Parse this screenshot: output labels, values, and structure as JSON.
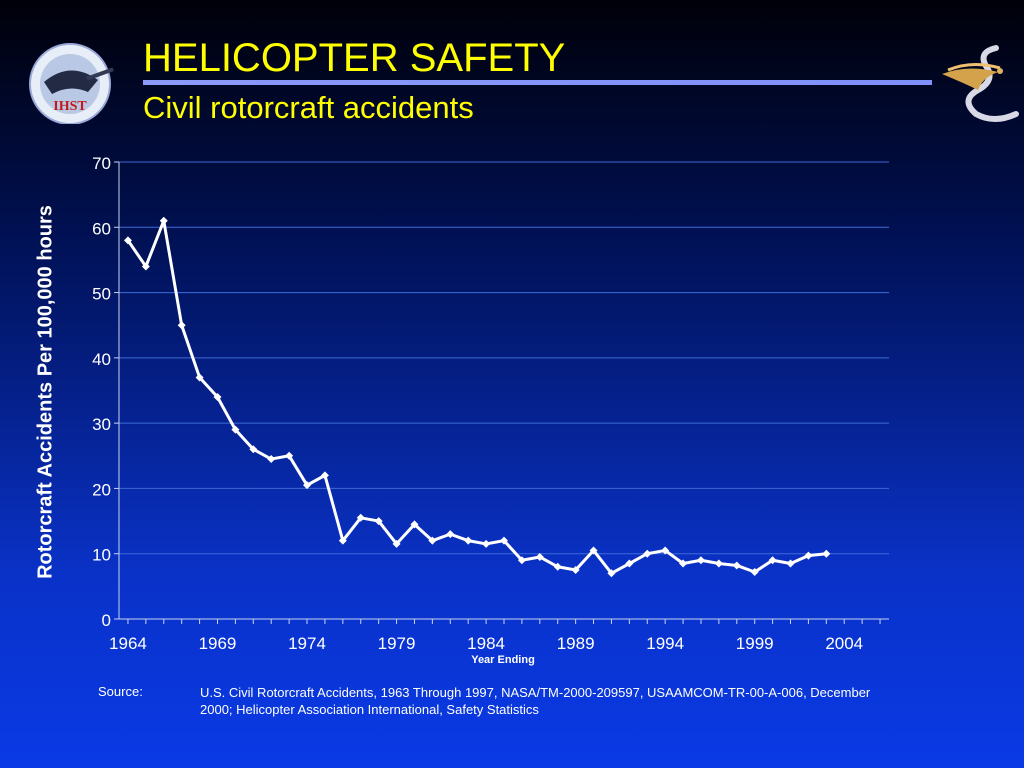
{
  "slide": {
    "title": "HELICOPTER SAFETY",
    "subtitle": "Civil rotorcraft accidents",
    "logo_left_text": "IHST",
    "source_label": "Source:",
    "source_text": "U.S. Civil Rotorcraft Accidents, 1963 Through 1997, NASA/TM-2000-209597, USAAMCOM-TR-00-A-006, December 2000; Helicopter Association International, Safety Statistics"
  },
  "colors": {
    "title": "#ffff00",
    "line": "#ffffff",
    "gridline": "#3d6bd6",
    "rule": "#8090ff"
  },
  "chart_data": {
    "type": "line",
    "title": "",
    "xlabel": "Year Ending",
    "ylabel": "Rotorcraft Accidents Per 100,000 hours",
    "xlim": [
      1963.5,
      2006.5
    ],
    "ylim": [
      0,
      70
    ],
    "grid": true,
    "x_ticks": [
      1964,
      1969,
      1974,
      1979,
      1984,
      1989,
      1994,
      1999,
      2004
    ],
    "y_ticks": [
      0,
      10,
      20,
      30,
      40,
      50,
      60,
      70
    ],
    "series": [
      {
        "x": [
          1964,
          1965,
          1966,
          1967,
          1968,
          1969,
          1970,
          1971,
          1972,
          1973,
          1974,
          1975,
          1976,
          1977,
          1978,
          1979,
          1980,
          1981,
          1982,
          1983,
          1984,
          1985,
          1986,
          1987,
          1988,
          1989,
          1990,
          1991,
          1992,
          1993,
          1994,
          1995,
          1996,
          1997,
          1998,
          1999,
          2000,
          2001,
          2002,
          2003
        ],
        "y": [
          58,
          54,
          61,
          45,
          37,
          34,
          29,
          26,
          24.5,
          25,
          20.5,
          22,
          12,
          15.5,
          15,
          11.5,
          14.5,
          12,
          13,
          12,
          11.5,
          12,
          9,
          9.5,
          8,
          7.5,
          10.5,
          7,
          8.5,
          10,
          10.5,
          8.5,
          9,
          8.5,
          8.2,
          7.2,
          9,
          8.5,
          9.7,
          10
        ]
      }
    ]
  }
}
